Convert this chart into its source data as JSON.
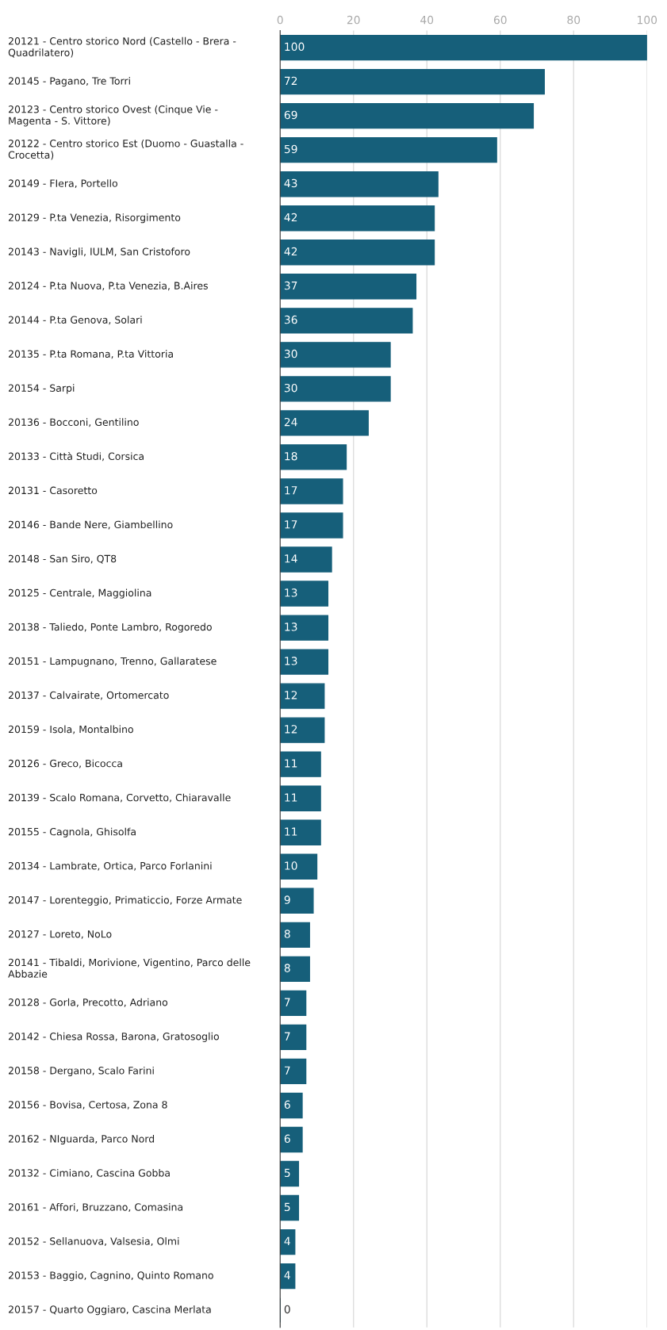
{
  "chart_data": {
    "type": "bar",
    "orientation": "horizontal",
    "color": "#165f7a",
    "data_labels": true,
    "grid": "x",
    "categories": [
      "20121 - Centro storico Nord (Castello - Brera - Quadrilatero)",
      "20145 - Pagano, Tre Torri",
      "20123 - Centro storico Ovest (Cinque Vie - Magenta - S. Vittore)",
      "20122 - Centro storico Est (Duomo - Guastalla - Crocetta)",
      "20149 - FIera, Portello",
      "20129 - P.ta Venezia, Risorgimento",
      "20143 - Navigli, IULM, San Cristoforo",
      "20124 - P.ta Nuova, P.ta Venezia, B.Aires",
      "20144 - P.ta Genova, Solari",
      "20135 - P.ta Romana, P.ta Vittoria",
      "20154 - Sarpi",
      "20136 - Bocconi, Gentilino",
      "20133 - Città Studi, Corsica",
      "20131 - Casoretto",
      "20146 - Bande Nere, Giambellino",
      "20148 - San Siro, QT8",
      "20125 - Centrale, Maggiolina",
      "20138 - Taliedo, Ponte Lambro, Rogoredo",
      "20151 - Lampugnano, Trenno, Gallaratese",
      "20137 - Calvairate, Ortomercato",
      "20159 - Isola, Montalbino",
      "20126 - Greco, Bicocca",
      "20139 - Scalo Romana, Corvetto, Chiaravalle",
      "20155 - Cagnola, Ghisolfa",
      "20134 - Lambrate, Ortica, Parco Forlanini",
      "20147 - Lorenteggio, Primaticcio, Forze Armate",
      "20127 - Loreto, NoLo",
      "20141 - Tibaldi, Morivione, Vigentino, Parco delle Abbazie",
      "20128 - Gorla, Precotto, Adriano",
      "20142 - Chiesa Rossa, Barona, Gratosoglio",
      "20158 - Dergano, Scalo Farini",
      "20156 - Bovisa, Certosa, Zona 8",
      "20162 - NIguarda, Parco Nord",
      "20132 - Cimiano, Cascina Gobba",
      "20161 - Affori, Bruzzano, Comasina",
      "20152 - Sellanuova, Valsesia, Olmi",
      "20153 - Baggio, Cagnino, Quinto Romano",
      "20157 - Quarto Oggiaro, Cascina Merlata"
    ],
    "values": [
      100,
      72,
      69,
      59,
      43,
      42,
      42,
      37,
      36,
      30,
      30,
      24,
      18,
      17,
      17,
      14,
      13,
      13,
      13,
      12,
      12,
      11,
      11,
      11,
      10,
      9,
      8,
      8,
      7,
      7,
      7,
      6,
      6,
      5,
      5,
      4,
      4,
      0
    ],
    "xlim": [
      0,
      100
    ],
    "xticks": [
      0,
      20,
      40,
      60,
      80,
      100
    ]
  }
}
